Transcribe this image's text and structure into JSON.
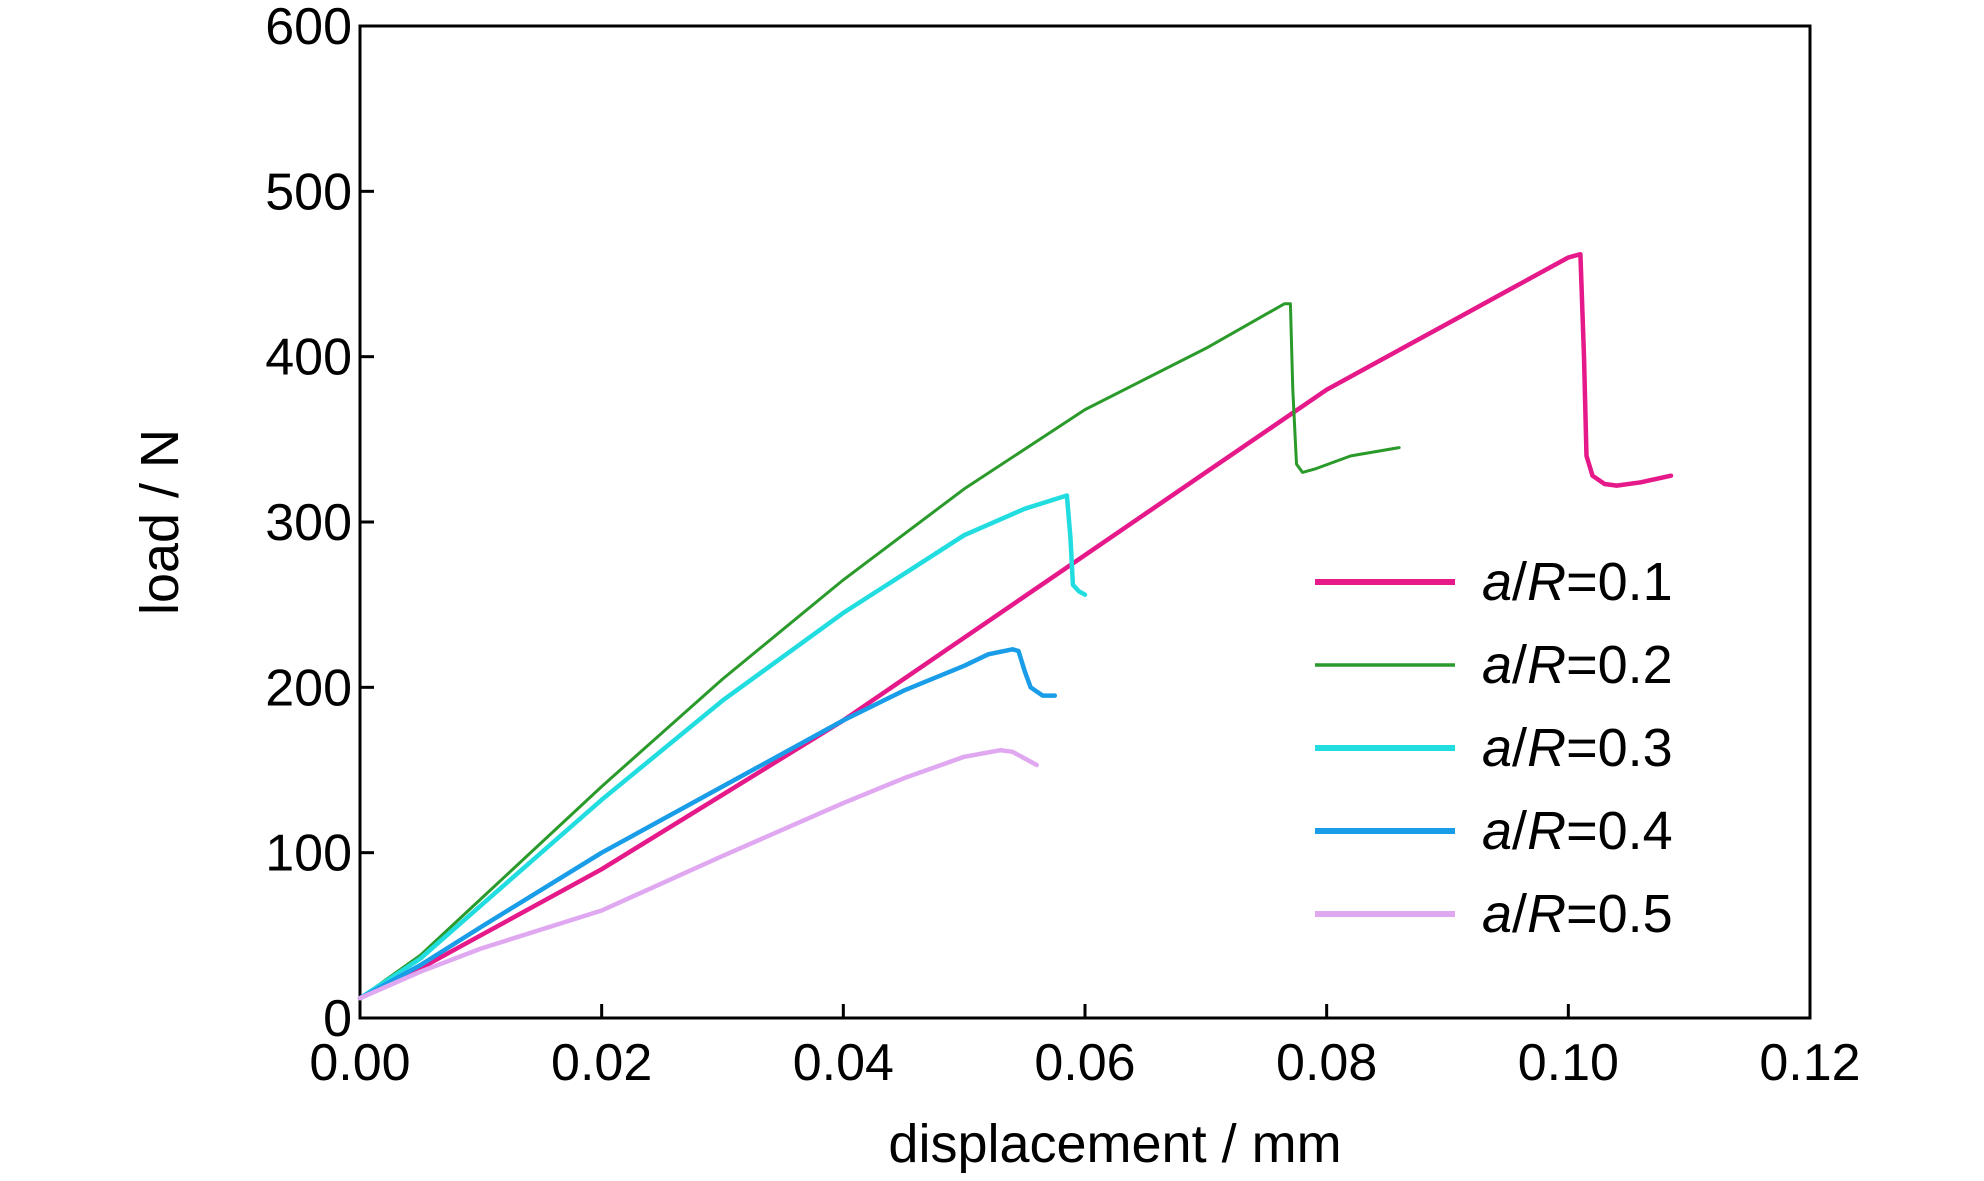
{
  "chart_data": {
    "type": "line",
    "title": "",
    "xlabel": "displacement / mm",
    "ylabel": "load / N",
    "xlim": [
      0.0,
      0.12
    ],
    "ylim": [
      0,
      600
    ],
    "xticks": [
      0.0,
      0.02,
      0.04,
      0.06,
      0.08,
      0.1,
      0.12
    ],
    "xtick_labels": [
      "0.00",
      "0.02",
      "0.04",
      "0.06",
      "0.08",
      "0.10",
      "0.12"
    ],
    "yticks": [
      0,
      100,
      200,
      300,
      400,
      500,
      600
    ],
    "ytick_labels": [
      "0",
      "100",
      "200",
      "300",
      "400",
      "500",
      "600"
    ],
    "grid": false,
    "legend_position": "right",
    "series": [
      {
        "name_prefix": "a/R",
        "name_value": "=0.1",
        "color": "#e6198a",
        "points": [
          [
            0.0,
            12
          ],
          [
            0.005,
            30
          ],
          [
            0.01,
            50
          ],
          [
            0.02,
            90
          ],
          [
            0.03,
            135
          ],
          [
            0.04,
            180
          ],
          [
            0.05,
            230
          ],
          [
            0.06,
            280
          ],
          [
            0.07,
            330
          ],
          [
            0.08,
            380
          ],
          [
            0.09,
            420
          ],
          [
            0.095,
            440
          ],
          [
            0.1,
            460
          ],
          [
            0.101,
            462
          ],
          [
            0.1013,
            400
          ],
          [
            0.1015,
            340
          ],
          [
            0.102,
            328
          ],
          [
            0.103,
            323
          ],
          [
            0.104,
            322
          ],
          [
            0.106,
            324
          ],
          [
            0.1085,
            328
          ]
        ]
      },
      {
        "name_prefix": "a/R",
        "name_value": "=0.2",
        "color": "#2a9a2a",
        "points": [
          [
            0.0,
            12
          ],
          [
            0.005,
            38
          ],
          [
            0.01,
            72
          ],
          [
            0.02,
            140
          ],
          [
            0.03,
            205
          ],
          [
            0.04,
            265
          ],
          [
            0.05,
            320
          ],
          [
            0.06,
            368
          ],
          [
            0.07,
            405
          ],
          [
            0.0765,
            432
          ],
          [
            0.077,
            432
          ],
          [
            0.0772,
            380
          ],
          [
            0.0775,
            335
          ],
          [
            0.078,
            330
          ],
          [
            0.079,
            332
          ],
          [
            0.082,
            340
          ],
          [
            0.086,
            345
          ]
        ]
      },
      {
        "name_prefix": "a/R",
        "name_value": "=0.3",
        "color": "#22dde0",
        "points": [
          [
            0.0,
            12
          ],
          [
            0.005,
            36
          ],
          [
            0.01,
            68
          ],
          [
            0.02,
            132
          ],
          [
            0.03,
            192
          ],
          [
            0.04,
            245
          ],
          [
            0.05,
            292
          ],
          [
            0.055,
            308
          ],
          [
            0.0585,
            316
          ],
          [
            0.0588,
            290
          ],
          [
            0.059,
            262
          ],
          [
            0.0595,
            258
          ],
          [
            0.06,
            256
          ]
        ]
      },
      {
        "name_prefix": "a/R",
        "name_value": "=0.4",
        "color": "#1a9de8",
        "points": [
          [
            0.0,
            12
          ],
          [
            0.005,
            32
          ],
          [
            0.01,
            55
          ],
          [
            0.02,
            100
          ],
          [
            0.03,
            140
          ],
          [
            0.04,
            180
          ],
          [
            0.045,
            198
          ],
          [
            0.05,
            213
          ],
          [
            0.052,
            220
          ],
          [
            0.054,
            223
          ],
          [
            0.0545,
            222
          ],
          [
            0.055,
            210
          ],
          [
            0.0555,
            200
          ],
          [
            0.0565,
            195
          ],
          [
            0.0575,
            195
          ]
        ]
      },
      {
        "name_prefix": "a/R",
        "name_value": "=0.5",
        "color": "#e0a8f0",
        "points": [
          [
            0.0,
            12
          ],
          [
            0.005,
            28
          ],
          [
            0.01,
            42
          ],
          [
            0.02,
            65
          ],
          [
            0.03,
            98
          ],
          [
            0.04,
            130
          ],
          [
            0.045,
            145
          ],
          [
            0.05,
            158
          ],
          [
            0.053,
            162
          ],
          [
            0.054,
            161
          ],
          [
            0.055,
            157
          ],
          [
            0.056,
            153
          ]
        ]
      }
    ]
  }
}
